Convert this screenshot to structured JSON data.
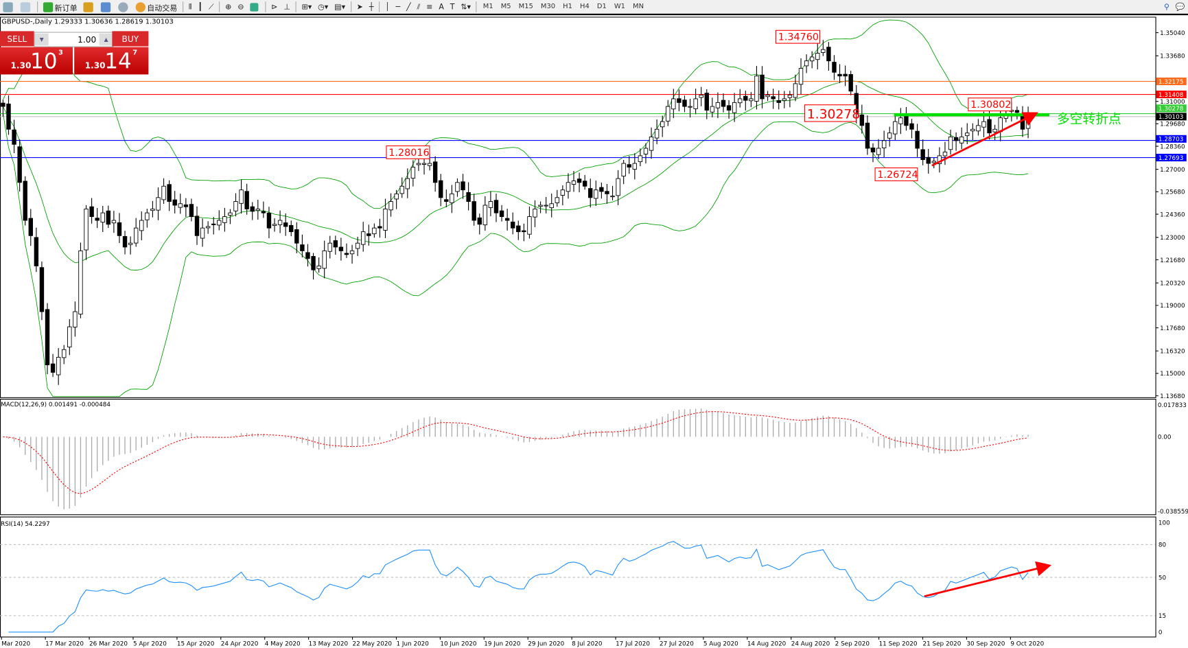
{
  "toolbar": {
    "new_order": "新订单",
    "auto_trading": "自动交易",
    "timeframes": [
      "M1",
      "M5",
      "M15",
      "M30",
      "H1",
      "H4",
      "D1",
      "W1",
      "MN"
    ]
  },
  "chart": {
    "title": "GBPUSD-,Daily  1.29333 1.30636 1.28619 1.30103"
  },
  "trade_panel": {
    "sell": "SELL",
    "buy": "BUY",
    "lot": "1.00",
    "sell_small": "1.30",
    "sell_big": "10",
    "sell_pip": "3",
    "buy_small": "1.30",
    "buy_big": "14",
    "buy_pip": "7"
  },
  "price_axis": [
    "1.35040",
    "1.33680",
    "1.31000",
    "1.29680",
    "1.28360",
    "1.27000",
    "1.25680",
    "1.24360",
    "1.23000",
    "1.21680",
    "1.20320",
    "1.19000",
    "1.17680",
    "1.16320",
    "1.15000",
    "1.13680"
  ],
  "levels": [
    {
      "price": 1.32175,
      "label": "1.32175",
      "color": "#ff6a1a"
    },
    {
      "price": 1.31408,
      "label": "1.31408",
      "color": "#ff0000"
    },
    {
      "price": 1.30278,
      "label": "1.30278",
      "color": "#32cd32"
    },
    {
      "price": 1.30103,
      "label": "1.30103",
      "color": "#000000"
    },
    {
      "price": 1.28703,
      "label": "1.28703",
      "color": "#0000ff"
    },
    {
      "price": 1.27693,
      "label": "1.27693",
      "color": "#0000ff"
    }
  ],
  "annotations": {
    "high": "1.34760",
    "mid": "1.28016",
    "pivot": "1.30278",
    "recent": "1.30802",
    "low": "1.26724",
    "pivot_text": "多空转折点"
  },
  "closes": [
    1.307,
    1.2936,
    1.2847,
    1.2623,
    1.24,
    1.231,
    1.2132,
    1.1863,
    1.155,
    1.1506,
    1.1595,
    1.164,
    1.1774,
    1.1863,
    1.2221,
    1.2467,
    1.2422,
    1.24,
    1.2444,
    1.2377,
    1.24,
    1.231,
    1.2243,
    1.2266,
    1.2355,
    1.24,
    1.2444,
    1.2467,
    1.2534,
    1.2601,
    1.2511,
    1.2489,
    1.2498,
    1.248,
    1.2422,
    1.231,
    1.2355,
    1.2364,
    1.2377,
    1.24,
    1.2422,
    1.2444,
    1.2511,
    1.2579,
    1.2467,
    1.2453,
    1.2467,
    1.2444,
    1.2355,
    1.2377,
    1.24,
    1.2364,
    1.2333,
    1.2266,
    1.2221,
    1.2176,
    1.2109,
    1.2132,
    1.2221,
    1.2266,
    1.2243,
    1.2221,
    1.2199,
    1.2221,
    1.2266,
    1.2333,
    1.231,
    1.2355,
    1.2355,
    1.2467,
    1.2511,
    1.2556,
    1.2601,
    1.2646,
    1.2713,
    1.2735,
    1.2735,
    1.2735,
    1.2623,
    1.2534,
    1.2511,
    1.2556,
    1.2623,
    1.2579,
    1.2511,
    1.24,
    1.2377,
    1.2489,
    1.2511,
    1.2444,
    1.2422,
    1.24,
    1.2355,
    1.2333,
    1.2333,
    1.2422,
    1.2467,
    1.2489,
    1.2489,
    1.2498,
    1.2534,
    1.2579,
    1.2623,
    1.2632,
    1.2623,
    1.2601,
    1.2534,
    1.2579,
    1.257,
    1.2556,
    1.2543,
    1.2646,
    1.2735,
    1.2713,
    1.2735,
    1.278,
    1.2824,
    1.2891,
    1.2936,
    1.2981,
    1.307,
    1.3115,
    1.3093,
    1.307,
    1.307,
    1.3115,
    1.3137,
    1.3048,
    1.307,
    1.3093,
    1.307,
    1.3048,
    1.3093,
    1.3115,
    1.3106,
    1.3115,
    1.3249,
    1.3115,
    1.3137,
    1.3115,
    1.3093,
    1.3115,
    1.3137,
    1.3204,
    1.3294,
    1.3338,
    1.3361,
    1.3383,
    1.3405,
    1.3338,
    1.3271,
    1.3249,
    1.3249,
    1.316,
    1.3026,
    1.2958,
    1.2824,
    1.2802,
    1.2824,
    1.2869,
    1.2914,
    1.2981,
    1.3003,
    1.2958,
    1.2936,
    1.2824,
    1.2757,
    1.2735,
    1.2748,
    1.278,
    1.2802,
    1.2891,
    1.2869,
    1.2891,
    1.2914,
    1.2936,
    1.2958,
    1.2981,
    1.2914,
    1.2936,
    1.3003,
    1.3026,
    1.3048,
    1.3035,
    1.2936,
    1.301
  ],
  "macd": {
    "label": "MACD(12,26,9) 0.001491 -0.000484",
    "max": "0.017833",
    "zero": "0.00",
    "min": "-0.038559"
  },
  "rsi": {
    "label": "RSI(14) 54.2297",
    "ticks": [
      "100",
      "80",
      "50",
      "15",
      "0"
    ]
  },
  "dates": [
    "Mar 2020",
    "17 Mar 2020",
    "26 Mar 2020",
    "5 Apr 2020",
    "15 Apr 2020",
    "24 Apr 2020",
    "4 May 2020",
    "13 May 2020",
    "22 May 2020",
    "1 Jun 2020",
    "10 Jun 2020",
    "19 Jun 2020",
    "29 Jun 2020",
    "8 Jul 2020",
    "17 Jul 2020",
    "27 Jul 2020",
    "5 Aug 2020",
    "14 Aug 2020",
    "24 Aug 2020",
    "2 Sep 2020",
    "11 Sep 2020",
    "21 Sep 2020",
    "30 Sep 2020",
    "9 Oct 2020"
  ],
  "colors": {
    "trade_red": "#d8282a",
    "bands": "#00a000",
    "rsi_line": "#1e90ff",
    "macd_signal": "#ff0000",
    "trend_arrow": "#ff0000",
    "pivot_green": "#00e000"
  }
}
